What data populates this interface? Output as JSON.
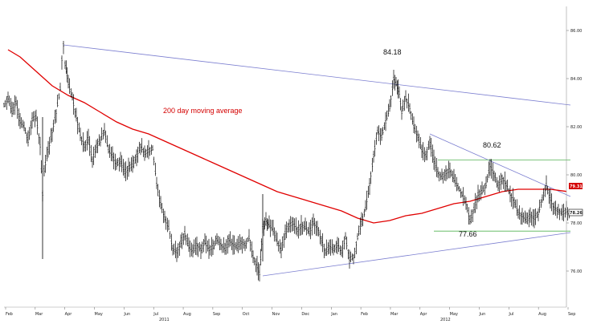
{
  "chart_data": {
    "type": "line",
    "title": "",
    "ylim": [
      75,
      87
    ],
    "y_ticks": [
      "86.00",
      "84.00",
      "82.00",
      "80.00",
      "78.00",
      "76.00"
    ],
    "x_ticks": [
      "Feb",
      "Mar",
      "Apr",
      "May",
      "Jun",
      "Jul",
      "Aug",
      "Sep",
      "Oct",
      "Nov",
      "Dec",
      "Jan",
      "Feb",
      "Mar",
      "Apr",
      "May",
      "Jun",
      "Jul",
      "Aug",
      "Sep"
    ],
    "year_labels": [
      "2011",
      "2012"
    ],
    "annotations": {
      "ma_label": "200 day moving average",
      "high_label": "84.18",
      "mid_label": "80.62",
      "low_label": "77.66"
    },
    "last_values": {
      "ma": "79.31",
      "price": "78.26"
    },
    "series": [
      {
        "name": "price",
        "color": "#000000",
        "points": [
          [
            0,
            82.9
          ],
          [
            5,
            83.2
          ],
          [
            10,
            82.6
          ],
          [
            15,
            83.0
          ],
          [
            20,
            82.2
          ],
          [
            25,
            82.0
          ],
          [
            30,
            81.4
          ],
          [
            35,
            82.3
          ],
          [
            40,
            82.4
          ],
          [
            45,
            81.2
          ],
          [
            48,
            79.2
          ],
          [
            50,
            80.2
          ],
          [
            55,
            81.0
          ],
          [
            60,
            81.8
          ],
          [
            65,
            82.6
          ],
          [
            70,
            83.6
          ],
          [
            72,
            84.8
          ],
          [
            74,
            85.4
          ],
          [
            76,
            84.6
          ],
          [
            80,
            83.8
          ],
          [
            85,
            83.2
          ],
          [
            90,
            82.4
          ],
          [
            95,
            81.6
          ],
          [
            100,
            81.2
          ],
          [
            105,
            81.5
          ],
          [
            110,
            80.6
          ],
          [
            115,
            81.2
          ],
          [
            120,
            81.4
          ],
          [
            125,
            81.8
          ],
          [
            130,
            81.0
          ],
          [
            135,
            80.8
          ],
          [
            140,
            80.4
          ],
          [
            145,
            80.6
          ],
          [
            150,
            80.1
          ],
          [
            155,
            80.3
          ],
          [
            160,
            80.4
          ],
          [
            165,
            80.8
          ],
          [
            170,
            81.2
          ],
          [
            175,
            80.9
          ],
          [
            180,
            81.0
          ],
          [
            185,
            81.1
          ],
          [
            190,
            79.6
          ],
          [
            195,
            78.8
          ],
          [
            200,
            78.2
          ],
          [
            205,
            77.8
          ],
          [
            210,
            76.9
          ],
          [
            215,
            76.8
          ],
          [
            220,
            77.2
          ],
          [
            225,
            77.6
          ],
          [
            230,
            77.0
          ],
          [
            235,
            76.8
          ],
          [
            240,
            77.1
          ],
          [
            245,
            76.9
          ],
          [
            250,
            77.2
          ],
          [
            255,
            76.9
          ],
          [
            260,
            77.0
          ],
          [
            265,
            77.3
          ],
          [
            270,
            77.1
          ],
          [
            275,
            76.9
          ],
          [
            280,
            77.3
          ],
          [
            285,
            77.1
          ],
          [
            290,
            77.0
          ],
          [
            295,
            77.2
          ],
          [
            300,
            77.1
          ],
          [
            305,
            77.4
          ],
          [
            310,
            76.6
          ],
          [
            315,
            76.2
          ],
          [
            318,
            75.9
          ],
          [
            322,
            77.8
          ],
          [
            326,
            78.1
          ],
          [
            330,
            77.9
          ],
          [
            335,
            77.7
          ],
          [
            340,
            77.2
          ],
          [
            345,
            76.9
          ],
          [
            350,
            77.6
          ],
          [
            355,
            77.9
          ],
          [
            360,
            78.0
          ],
          [
            365,
            77.7
          ],
          [
            370,
            77.9
          ],
          [
            375,
            77.8
          ],
          [
            380,
            77.6
          ],
          [
            385,
            78.0
          ],
          [
            390,
            77.8
          ],
          [
            395,
            77.3
          ],
          [
            400,
            76.8
          ],
          [
            405,
            77.0
          ],
          [
            410,
            76.9
          ],
          [
            415,
            77.1
          ],
          [
            420,
            76.8
          ],
          [
            425,
            77.4
          ],
          [
            430,
            76.5
          ],
          [
            435,
            76.6
          ],
          [
            440,
            77.4
          ],
          [
            445,
            78.0
          ],
          [
            450,
            78.6
          ],
          [
            455,
            79.6
          ],
          [
            460,
            80.8
          ],
          [
            465,
            81.8
          ],
          [
            470,
            81.6
          ],
          [
            475,
            82.2
          ],
          [
            480,
            82.8
          ],
          [
            485,
            84.0
          ],
          [
            488,
            83.8
          ],
          [
            492,
            83.4
          ],
          [
            495,
            82.6
          ],
          [
            500,
            83.2
          ],
          [
            505,
            82.8
          ],
          [
            510,
            82.0
          ],
          [
            515,
            81.6
          ],
          [
            520,
            81.0
          ],
          [
            525,
            80.8
          ],
          [
            530,
            81.4
          ],
          [
            535,
            80.6
          ],
          [
            540,
            80.1
          ],
          [
            545,
            79.9
          ],
          [
            550,
            80.1
          ],
          [
            555,
            80.2
          ],
          [
            560,
            79.8
          ],
          [
            565,
            79.5
          ],
          [
            570,
            79.2
          ],
          [
            575,
            78.8
          ],
          [
            580,
            78.1
          ],
          [
            585,
            78.6
          ],
          [
            590,
            79.2
          ],
          [
            595,
            79.3
          ],
          [
            600,
            79.6
          ],
          [
            605,
            80.4
          ],
          [
            610,
            80.0
          ],
          [
            615,
            79.5
          ],
          [
            620,
            79.9
          ],
          [
            625,
            79.6
          ],
          [
            630,
            79.2
          ],
          [
            635,
            78.9
          ],
          [
            640,
            78.4
          ],
          [
            645,
            78.3
          ],
          [
            650,
            78.1
          ],
          [
            655,
            78.3
          ],
          [
            660,
            78.2
          ],
          [
            665,
            78.4
          ],
          [
            670,
            79.0
          ],
          [
            675,
            79.6
          ],
          [
            680,
            79.0
          ],
          [
            685,
            78.6
          ],
          [
            690,
            78.5
          ],
          [
            695,
            78.4
          ],
          [
            700,
            78.5
          ],
          [
            705,
            78.26
          ]
        ]
      },
      {
        "name": "200 day moving average",
        "color": "#e00000",
        "points": [
          [
            5,
            85.2
          ],
          [
            20,
            84.9
          ],
          [
            40,
            84.3
          ],
          [
            60,
            83.7
          ],
          [
            80,
            83.3
          ],
          [
            100,
            83.0
          ],
          [
            120,
            82.6
          ],
          [
            140,
            82.2
          ],
          [
            160,
            81.9
          ],
          [
            180,
            81.7
          ],
          [
            200,
            81.4
          ],
          [
            220,
            81.1
          ],
          [
            240,
            80.8
          ],
          [
            260,
            80.5
          ],
          [
            280,
            80.2
          ],
          [
            300,
            79.9
          ],
          [
            320,
            79.6
          ],
          [
            340,
            79.3
          ],
          [
            360,
            79.1
          ],
          [
            380,
            78.9
          ],
          [
            400,
            78.7
          ],
          [
            420,
            78.5
          ],
          [
            440,
            78.2
          ],
          [
            460,
            78.0
          ],
          [
            480,
            78.1
          ],
          [
            500,
            78.3
          ],
          [
            520,
            78.4
          ],
          [
            540,
            78.6
          ],
          [
            560,
            78.8
          ],
          [
            580,
            78.9
          ],
          [
            600,
            79.1
          ],
          [
            620,
            79.3
          ],
          [
            640,
            79.4
          ],
          [
            660,
            79.4
          ],
          [
            680,
            79.4
          ],
          [
            700,
            79.31
          ]
        ]
      }
    ],
    "trendlines": [
      {
        "name": "upper",
        "color": "#7b7ed0",
        "from": [
          74,
          85.4
        ],
        "to": [
          705,
          82.9
        ]
      },
      {
        "name": "lower",
        "color": "#7b7ed0",
        "from": [
          322,
          75.8
        ],
        "to": [
          705,
          77.6
        ]
      },
      {
        "name": "wedge-top",
        "color": "#7b7ed0",
        "from": [
          530,
          81.7
        ],
        "to": [
          705,
          79.1
        ]
      },
      {
        "name": "resistance",
        "color": "#55b455",
        "from": [
          540,
          80.62
        ],
        "to": [
          705,
          80.62
        ]
      },
      {
        "name": "support",
        "color": "#55b455",
        "from": [
          535,
          77.66
        ],
        "to": [
          705,
          77.66
        ]
      }
    ]
  }
}
